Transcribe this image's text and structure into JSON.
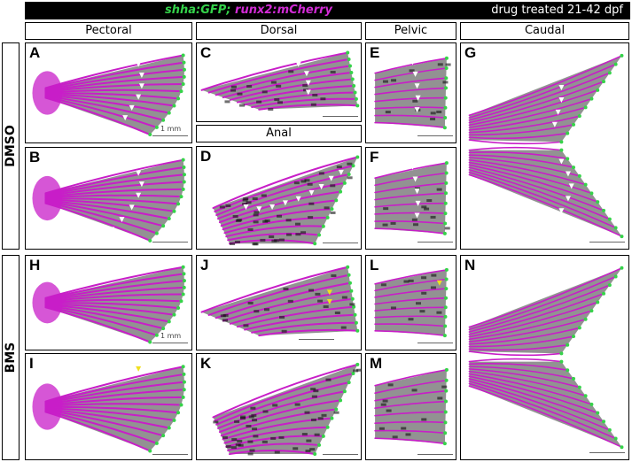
{
  "header": {
    "genotype_green": "shha:GFP;",
    "genotype_magenta": "runx2:mCherry",
    "treatment": "drug treated 21-42 dpf"
  },
  "columns": [
    "Pectoral",
    "Dorsal",
    "Anal",
    "Pelvic",
    "Caudal"
  ],
  "rows": [
    "DMSO",
    "BMS"
  ],
  "panels": [
    "A",
    "B",
    "C",
    "D",
    "E",
    "F",
    "G",
    "H",
    "I",
    "J",
    "K",
    "L",
    "M",
    "N"
  ],
  "scale_label": "1 mm",
  "colors": {
    "ray": "#c81ec8",
    "tip": "#36d34a",
    "tissue": "#6e6e6e",
    "arrow_white": "#ffffff",
    "arrow_yellow": "#f0e020"
  }
}
